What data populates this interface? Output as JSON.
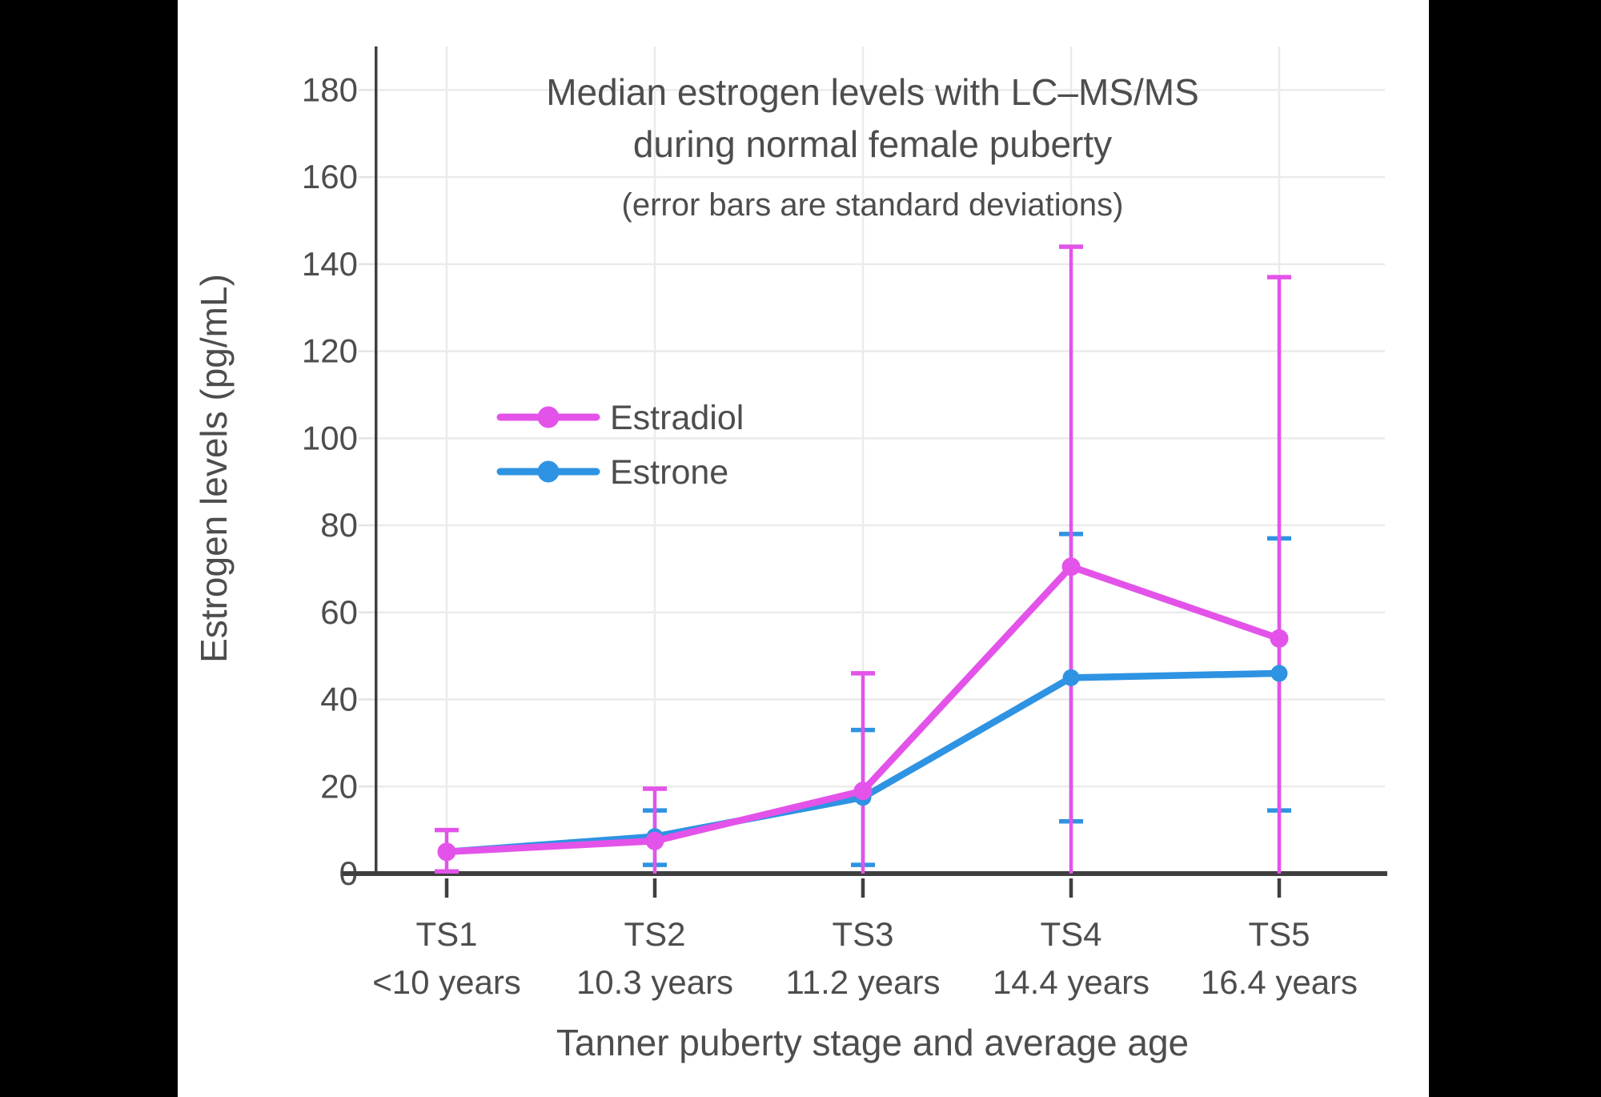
{
  "chart_data": {
    "type": "line",
    "title_lines": [
      "Median estrogen levels with LC–MS/MS",
      "during normal female puberty"
    ],
    "subtitle": "(error bars are standard deviations)",
    "xlabel": "Tanner puberty stage and average age",
    "ylabel": "Estrogen levels (pg/mL)",
    "ylim": [
      0,
      190
    ],
    "yticks": [
      0,
      20,
      40,
      60,
      80,
      100,
      120,
      140,
      160,
      180
    ],
    "grid": true,
    "legend_position": "inside-upper-left",
    "categories": [
      "TS1",
      "TS2",
      "TS3",
      "TS4",
      "TS5"
    ],
    "category_sublabels": [
      "<10 years",
      "10.3 years",
      "11.2 years",
      "14.4 years",
      "16.4 years"
    ],
    "series": [
      {
        "name": "Estrone",
        "color": "#2E93E2",
        "values": [
          5,
          8.5,
          17.5,
          45,
          46
        ],
        "error_high": [
          null,
          14.5,
          33,
          78,
          77
        ],
        "error_low": [
          null,
          2,
          2,
          12,
          14.5
        ]
      },
      {
        "name": "Estradiol",
        "color": "#E353E9",
        "values": [
          5,
          7.5,
          19,
          70.5,
          54
        ],
        "error_high": [
          10,
          19.5,
          46,
          144,
          137
        ],
        "error_low": [
          0.5,
          0,
          0,
          0,
          0
        ]
      }
    ],
    "colors": {
      "letterbox": "#000000",
      "panel": "#FFFFFF",
      "grid": "#EBEBEB",
      "axis": "#3F3F3F",
      "text": "#4D4D4D",
      "minor_tick": "#E3E3E3"
    }
  }
}
